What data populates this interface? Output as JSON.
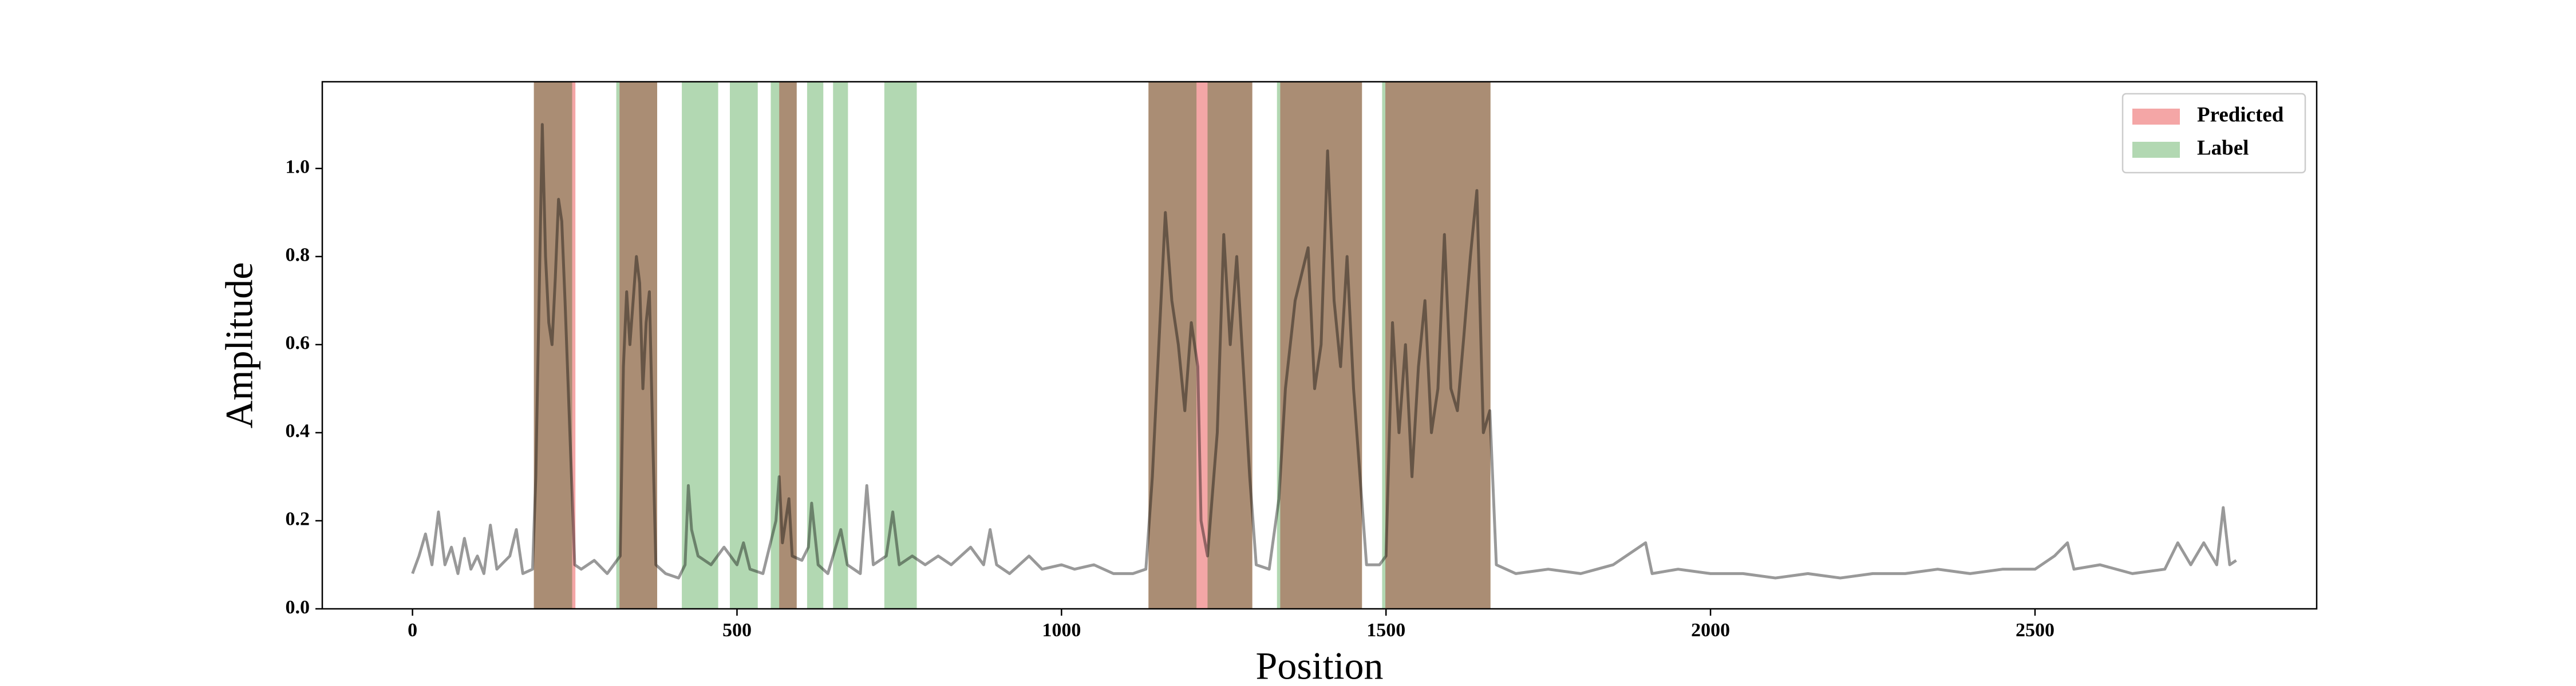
{
  "chart_data": {
    "type": "line",
    "xlabel": "Position",
    "ylabel": "Amplitude",
    "xlim": [
      -139,
      2934
    ],
    "ylim": [
      0,
      1.197
    ],
    "xticks": [
      0,
      500,
      1000,
      1500,
      2000,
      2500
    ],
    "yticks": [
      {
        "value": 0,
        "label": "0.0"
      },
      0.2,
      0.4,
      0.6,
      0.8,
      {
        "value": 1,
        "label": "1.0"
      }
    ],
    "legend": "upper right",
    "x": [
      0,
      10,
      20,
      30,
      40,
      50,
      60,
      70,
      80,
      90,
      100,
      110,
      120,
      130,
      150,
      160,
      170,
      185,
      190,
      195,
      200,
      205,
      210,
      215,
      220,
      225,
      230,
      235,
      240,
      245,
      250,
      260,
      280,
      300,
      310,
      320,
      325,
      330,
      335,
      340,
      345,
      350,
      355,
      360,
      365,
      370,
      375,
      390,
      410,
      420,
      425,
      430,
      440,
      460,
      480,
      500,
      510,
      520,
      540,
      560,
      565,
      570,
      580,
      585,
      600,
      610,
      615,
      625,
      640,
      660,
      670,
      690,
      700,
      710,
      730,
      740,
      750,
      770,
      790,
      810,
      830,
      860,
      880,
      890,
      900,
      920,
      950,
      970,
      1000,
      1020,
      1050,
      1080,
      1110,
      1130,
      1140,
      1150,
      1160,
      1170,
      1180,
      1190,
      1200,
      1210,
      1215,
      1225,
      1240,
      1250,
      1260,
      1270,
      1280,
      1290,
      1300,
      1320,
      1335,
      1345,
      1360,
      1380,
      1390,
      1400,
      1410,
      1420,
      1430,
      1440,
      1450,
      1460,
      1470,
      1490,
      1500,
      1510,
      1520,
      1530,
      1540,
      1550,
      1560,
      1570,
      1580,
      1590,
      1600,
      1610,
      1620,
      1630,
      1640,
      1650,
      1660,
      1670,
      1700,
      1750,
      1800,
      1850,
      1900,
      1910,
      1950,
      2000,
      2050,
      2100,
      2150,
      2200,
      2250,
      2300,
      2350,
      2400,
      2450,
      2500,
      2530,
      2550,
      2560,
      2600,
      2650,
      2700,
      2720,
      2740,
      2760,
      2780,
      2790,
      2800,
      2810
    ],
    "series": [
      {
        "color": "#999999",
        "values": [
          0.08,
          0.12,
          0.17,
          0.1,
          0.22,
          0.1,
          0.14,
          0.08,
          0.16,
          0.09,
          0.12,
          0.08,
          0.19,
          0.09,
          0.12,
          0.18,
          0.08,
          0.09,
          0.3,
          0.7,
          1.1,
          0.8,
          0.65,
          0.6,
          0.75,
          0.93,
          0.88,
          0.7,
          0.5,
          0.3,
          0.1,
          0.09,
          0.11,
          0.08,
          0.1,
          0.12,
          0.55,
          0.72,
          0.6,
          0.7,
          0.8,
          0.74,
          0.5,
          0.65,
          0.72,
          0.4,
          0.1,
          0.08,
          0.07,
          0.1,
          0.28,
          0.18,
          0.12,
          0.1,
          0.14,
          0.1,
          0.15,
          0.09,
          0.08,
          0.2,
          0.3,
          0.15,
          0.25,
          0.12,
          0.11,
          0.14,
          0.24,
          0.1,
          0.08,
          0.18,
          0.1,
          0.08,
          0.28,
          0.1,
          0.12,
          0.22,
          0.1,
          0.12,
          0.1,
          0.12,
          0.1,
          0.14,
          0.1,
          0.18,
          0.1,
          0.08,
          0.12,
          0.09,
          0.1,
          0.09,
          0.1,
          0.08,
          0.08,
          0.09,
          0.3,
          0.6,
          0.9,
          0.7,
          0.6,
          0.45,
          0.65,
          0.55,
          0.2,
          0.12,
          0.4,
          0.85,
          0.6,
          0.8,
          0.55,
          0.3,
          0.1,
          0.09,
          0.25,
          0.5,
          0.7,
          0.82,
          0.5,
          0.6,
          1.04,
          0.7,
          0.55,
          0.8,
          0.5,
          0.3,
          0.1,
          0.1,
          0.12,
          0.65,
          0.4,
          0.6,
          0.3,
          0.55,
          0.7,
          0.4,
          0.5,
          0.85,
          0.5,
          0.45,
          0.62,
          0.8,
          0.95,
          0.4,
          0.45,
          0.1,
          0.08,
          0.09,
          0.08,
          0.1,
          0.15,
          0.08,
          0.09,
          0.08,
          0.08,
          0.07,
          0.08,
          0.07,
          0.08,
          0.08,
          0.09,
          0.08,
          0.09,
          0.09,
          0.12,
          0.15,
          0.09,
          0.1,
          0.08,
          0.09,
          0.15,
          0.1,
          0.15,
          0.1,
          0.23,
          0.1,
          0.11
        ]
      }
    ],
    "spans": [
      {
        "name": "Predicted",
        "color": "#f4a6a6",
        "ranges": [
          [
            187,
            251
          ],
          [
            319,
            377
          ],
          [
            565,
            592
          ],
          [
            1134,
            1294
          ],
          [
            1337,
            1463
          ],
          [
            1499,
            1661
          ]
        ]
      },
      {
        "name": "Label",
        "color": "#b2d8b2",
        "ranges": [
          [
            187,
            246
          ],
          [
            314,
            377
          ],
          [
            415,
            471
          ],
          [
            489,
            532
          ],
          [
            552,
            592
          ],
          [
            608,
            633
          ],
          [
            648,
            671
          ],
          [
            727,
            777
          ],
          [
            1134,
            1208
          ],
          [
            1225,
            1294
          ],
          [
            1332,
            1463
          ],
          [
            1494,
            1661
          ]
        ]
      }
    ]
  }
}
